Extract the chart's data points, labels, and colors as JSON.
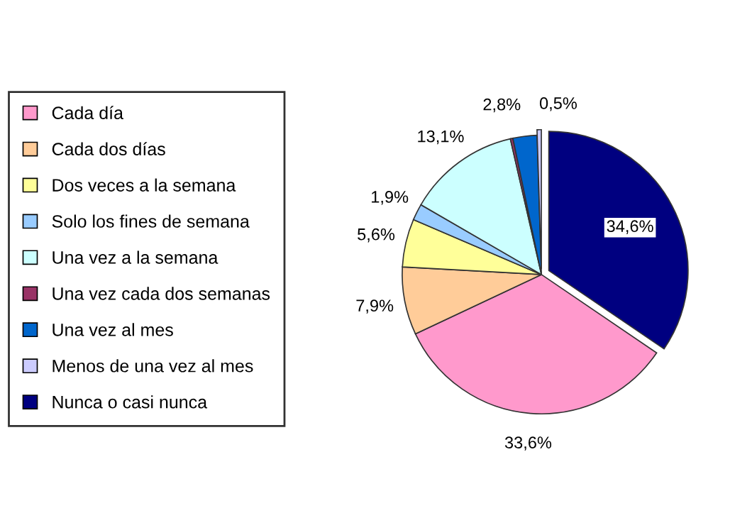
{
  "chart_data": {
    "type": "pie",
    "legend": "left",
    "categories": [
      "Cada día",
      "Cada dos días",
      "Dos veces a la semana",
      "Solo los fines de semana",
      "Una vez a la semana",
      "Una vez cada dos semanas",
      "Una vez al mes",
      "Menos de una vez al mes",
      "Nunca o casi nunca"
    ],
    "values": [
      33.6,
      7.9,
      5.6,
      1.9,
      13.1,
      0.3,
      2.8,
      0.5,
      34.6
    ],
    "value_labels": [
      "33,6%",
      "7,9%",
      "5,6%",
      "1,9%",
      "13,1%",
      null,
      "2,8%",
      "0,5%",
      "34,6%"
    ],
    "colors": [
      "#ff99cc",
      "#ffcc99",
      "#ffff99",
      "#99ccff",
      "#ccffff",
      "#993366",
      "#0066cc",
      "#ccccff",
      "#000080"
    ]
  }
}
